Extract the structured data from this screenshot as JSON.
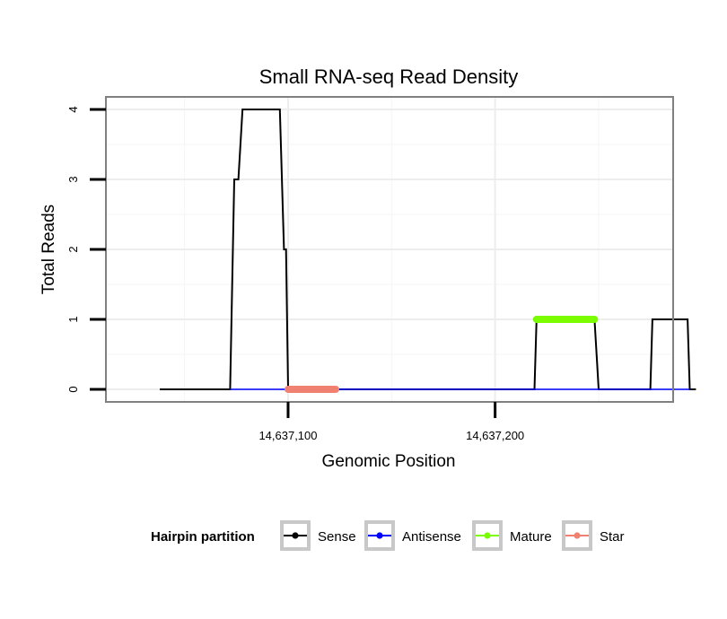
{
  "chart_data": {
    "type": "line",
    "title": "Small RNA-seq Read Density",
    "xlabel": "Genomic Position",
    "ylabel": "Total Reads",
    "xlim": [
      14637012,
      14637286
    ],
    "ylim": [
      -0.18,
      4.18
    ],
    "x_ticks": [
      14637100,
      14637200
    ],
    "x_tick_labels": [
      "14,637,100",
      "14,637,200"
    ],
    "y_ticks": [
      0,
      1,
      2,
      3,
      4
    ],
    "y_tick_labels": [
      "0",
      "1",
      "2",
      "3",
      "4"
    ],
    "grid": true,
    "legend_position": "bottom",
    "legend_title": "Hairpin partition",
    "series": [
      {
        "name": "Sense",
        "color": "#000000",
        "kind": "line",
        "points": [
          [
            14637038,
            0
          ],
          [
            14637072,
            0
          ],
          [
            14637074,
            3
          ],
          [
            14637076,
            3
          ],
          [
            14637078,
            4
          ],
          [
            14637096,
            4
          ],
          [
            14637098,
            2
          ],
          [
            14637099,
            2
          ],
          [
            14637100,
            0
          ],
          [
            14637219,
            0
          ],
          [
            14637220,
            1
          ],
          [
            14637248,
            1
          ],
          [
            14637250,
            0
          ],
          [
            14637275,
            0
          ],
          [
            14637276,
            1
          ],
          [
            14637293,
            1
          ],
          [
            14637294,
            0
          ],
          [
            14637297,
            0
          ]
        ]
      },
      {
        "name": "Antisense",
        "color": "#0000ff",
        "kind": "line",
        "points": [
          [
            14637072,
            0
          ],
          [
            14637100,
            0
          ],
          [
            14637219,
            0
          ],
          [
            14637250,
            0
          ],
          [
            14637276,
            0
          ],
          [
            14637294,
            0
          ]
        ]
      },
      {
        "name": "Mature",
        "color": "#7cfc00",
        "kind": "segment",
        "points": [
          [
            14637220,
            1
          ],
          [
            14637248,
            1
          ]
        ]
      },
      {
        "name": "Star",
        "color": "#f08070",
        "kind": "segment",
        "points": [
          [
            14637100,
            0
          ],
          [
            14637123,
            0
          ]
        ]
      }
    ]
  }
}
